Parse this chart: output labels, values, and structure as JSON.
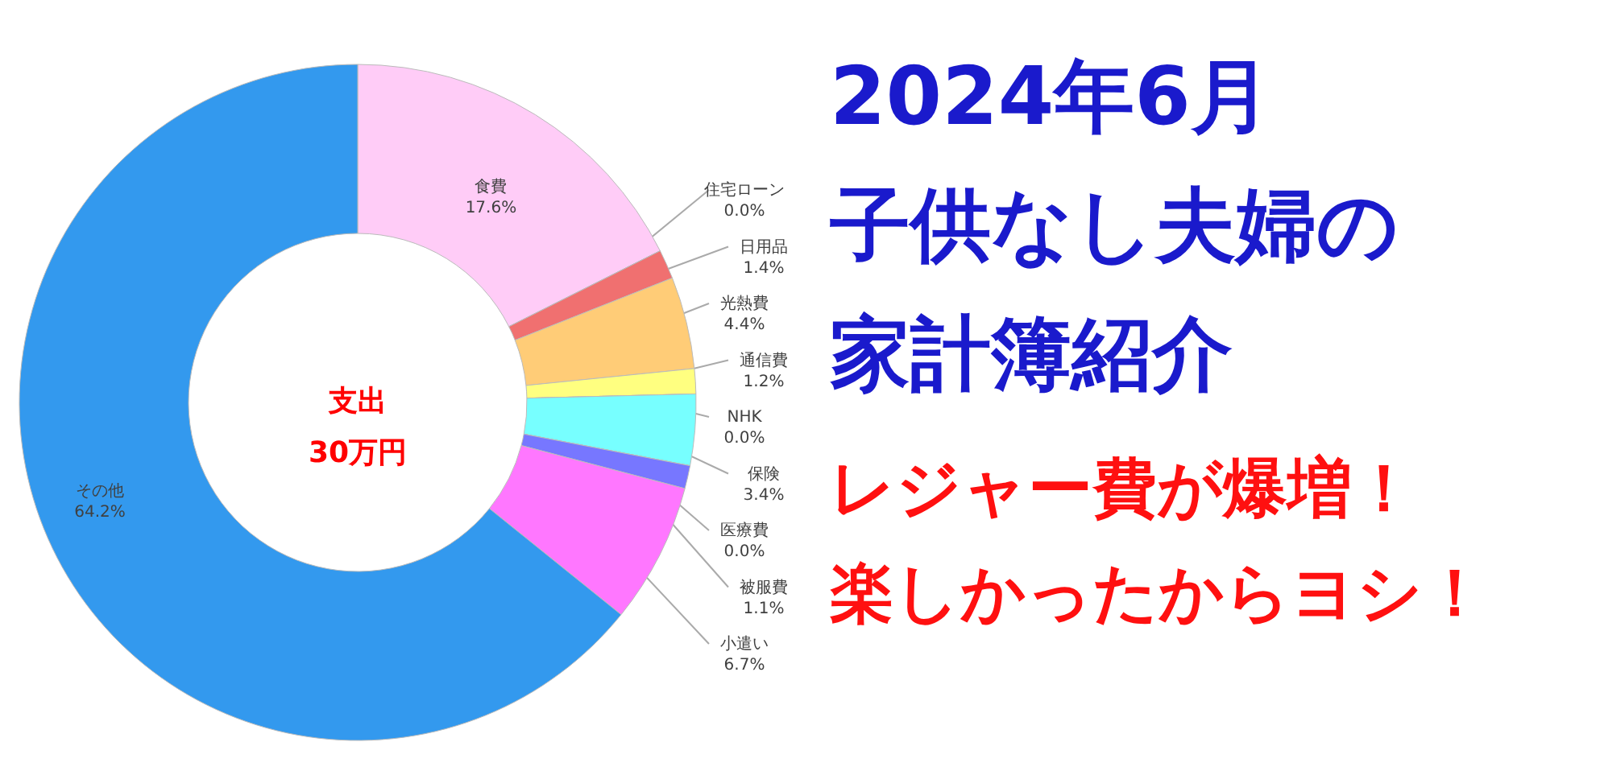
{
  "chart_data": {
    "type": "donut",
    "title": "2024年6月子供なし夫婦の家計簿紹介",
    "subtitle": "レジャー費が爆増！楽しかったからヨシ！",
    "categories": [
      "食費",
      "住宅ローン",
      "日用品",
      "光熱費",
      "通信費",
      "NHK",
      "保険",
      "医療費",
      "被服費",
      "小遣い",
      "その他"
    ],
    "values": [
      17.6,
      0.0,
      1.4,
      4.4,
      1.2,
      0.0,
      3.4,
      0.0,
      1.1,
      6.7,
      64.2
    ],
    "value_labels": [
      "17.6%",
      "0.0%",
      "1.4%",
      "4.4%",
      "1.2%",
      "0.0%",
      "3.4%",
      "0.0%",
      "1.1%",
      "6.7%",
      "64.2%"
    ],
    "colors": [
      "#ffccf7",
      "#c08080",
      "#f07070",
      "#ffcc77",
      "#ffff80",
      "#cccccc",
      "#77ffff",
      "#6666ee",
      "#7777ff",
      "#ff77ff",
      "#3399ee"
    ],
    "annotations": [
      "支出\n30万円"
    ]
  }
}
